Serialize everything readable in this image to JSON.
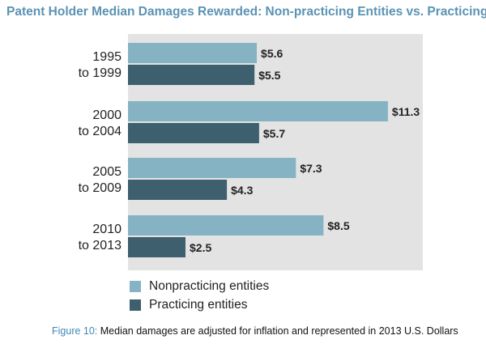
{
  "colors": {
    "nonpracticing": "#86b3c4",
    "practicing": "#3d5f6e",
    "title": "#5b93b3",
    "panel": "#e3e3e3"
  },
  "chart_data": {
    "type": "bar",
    "orientation": "horizontal",
    "title": "Patent Holder Median Damages Rewarded: Non-practicing Entities vs. Practicing Entities",
    "categories": [
      [
        "1995",
        "to 1999"
      ],
      [
        "2000",
        "to 2004"
      ],
      [
        "2005",
        "to 2009"
      ],
      [
        "2010",
        "to 2013"
      ]
    ],
    "series": [
      {
        "name": "Nonpracticing entities",
        "values": [
          5.6,
          11.3,
          7.3,
          8.5
        ],
        "labels": [
          "$5.6",
          "$11.3",
          "$7.3",
          "$8.5"
        ]
      },
      {
        "name": "Practicing entities",
        "values": [
          5.5,
          5.7,
          4.3,
          2.5
        ],
        "labels": [
          "$5.5",
          "$5.7",
          "$4.3",
          "$2.5"
        ]
      }
    ],
    "xlim": [
      0,
      12.5
    ],
    "grid": false,
    "legend_position": "bottom-left"
  },
  "caption": {
    "prefix": "Figure 10:",
    "text": " Median damages are adjusted for inflation and represented in 2013 U.S. Dollars"
  }
}
